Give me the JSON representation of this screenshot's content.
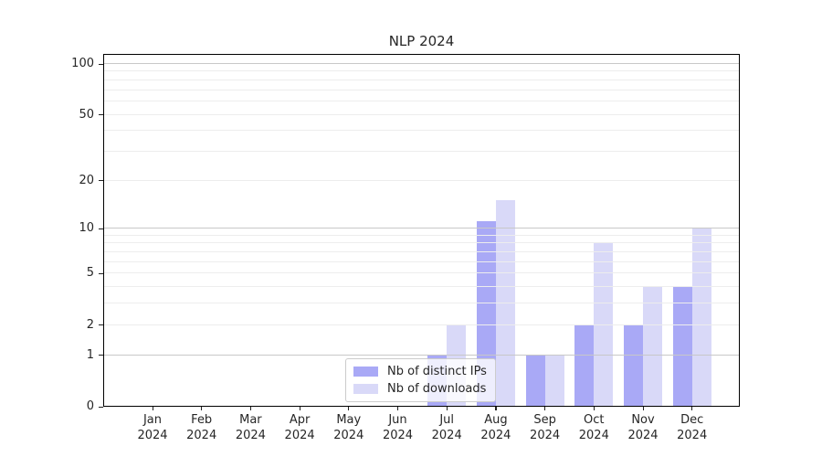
{
  "figure": {
    "background": "#ffffff"
  },
  "chart_data": {
    "type": "bar",
    "title": "NLP 2024",
    "categories": [
      "Jan",
      "Feb",
      "Mar",
      "Apr",
      "May",
      "Jun",
      "Jul",
      "Aug",
      "Sep",
      "Oct",
      "Nov",
      "Dec"
    ],
    "category_year": "2024",
    "series": [
      {
        "name": "Nb of distinct IPs",
        "color": "#a9a9f6",
        "values": [
          0,
          0,
          0,
          0,
          0,
          0,
          1,
          11,
          1,
          2,
          2,
          4
        ]
      },
      {
        "name": "Nb of downloads",
        "color": "#d9d9f8",
        "values": [
          0,
          0,
          0,
          0,
          0,
          0,
          2,
          15,
          1,
          8,
          4,
          10
        ]
      }
    ],
    "yscale": "log1p",
    "ylim": [
      0,
      115
    ],
    "xlabel": "",
    "ylabel": "",
    "y_tick_labels": [
      "0",
      "1",
      "2",
      "5",
      "10",
      "20",
      "50",
      "100"
    ],
    "y_tick_values": [
      0,
      1,
      2,
      5,
      10,
      20,
      50,
      100
    ],
    "y_major_gridlines": [
      1,
      10,
      100
    ],
    "y_minor_gridlines": [
      2,
      3,
      4,
      5,
      6,
      7,
      8,
      9,
      20,
      30,
      40,
      50,
      60,
      70,
      80,
      90
    ],
    "grid": true,
    "legend": {
      "position": "lower center",
      "entries": [
        "Nb of distinct IPs",
        "Nb of downloads"
      ]
    },
    "colors": {
      "major_grid": "#c8c8c8",
      "minor_grid": "#ededed",
      "spine": "#000000",
      "text": "#262626"
    }
  }
}
